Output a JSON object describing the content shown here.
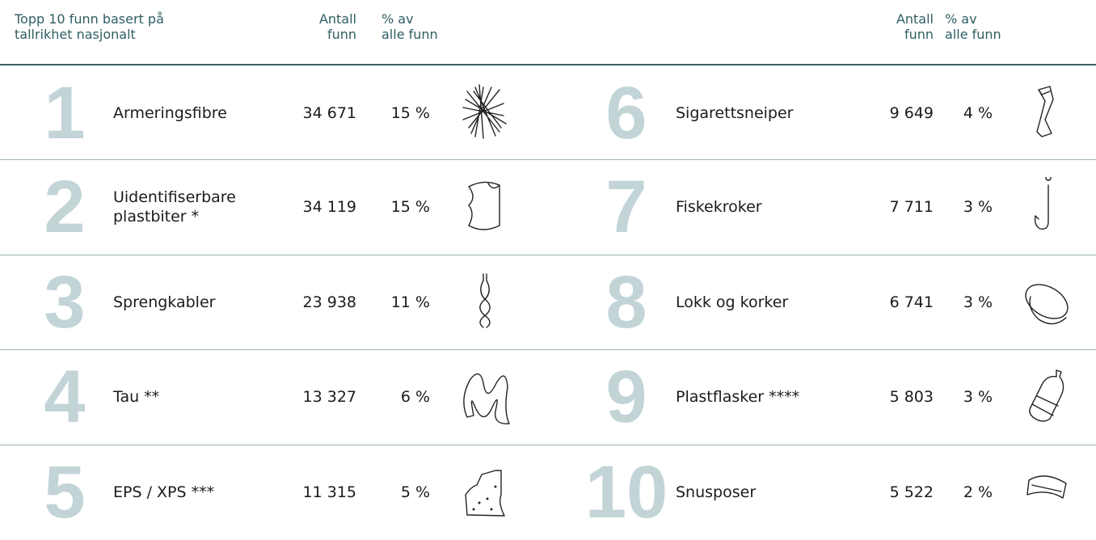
{
  "header": {
    "title": [
      "Topp 10 funn basert på",
      "tallrikhet nasjonalt"
    ],
    "count_header": [
      "Antall",
      "funn"
    ],
    "share_header": [
      "% av",
      "alle funn"
    ]
  },
  "rows": [
    {
      "rank": 1,
      "name": "Armeringsfibre",
      "count": "34 671",
      "share": "15 %"
    },
    {
      "rank": 2,
      "name": "Uidentifiserbare plastbiter *",
      "count": "34 119",
      "share": "15 %"
    },
    {
      "rank": 3,
      "name": "Sprengkabler",
      "count": "23 938",
      "share": "11 %"
    },
    {
      "rank": 4,
      "name": "Tau **",
      "count": "13 327",
      "share": "6 %"
    },
    {
      "rank": 5,
      "name": "EPS / XPS ***",
      "count": "11 315",
      "share": "5 %"
    },
    {
      "rank": 6,
      "name": "Sigarettsneiper",
      "count": "9 649",
      "share": "4 %"
    },
    {
      "rank": 7,
      "name": "Fiskekroker",
      "count": "7 711",
      "share": "3 %"
    },
    {
      "rank": 8,
      "name": "Lokk og korker",
      "count": "6 741",
      "share": "3 %"
    },
    {
      "rank": 9,
      "name": "Plastflasker ****",
      "count": "5 803",
      "share": "3 %"
    },
    {
      "rank": 10,
      "name": "Snusposer",
      "count": "5 522",
      "share": "2 %"
    }
  ]
}
